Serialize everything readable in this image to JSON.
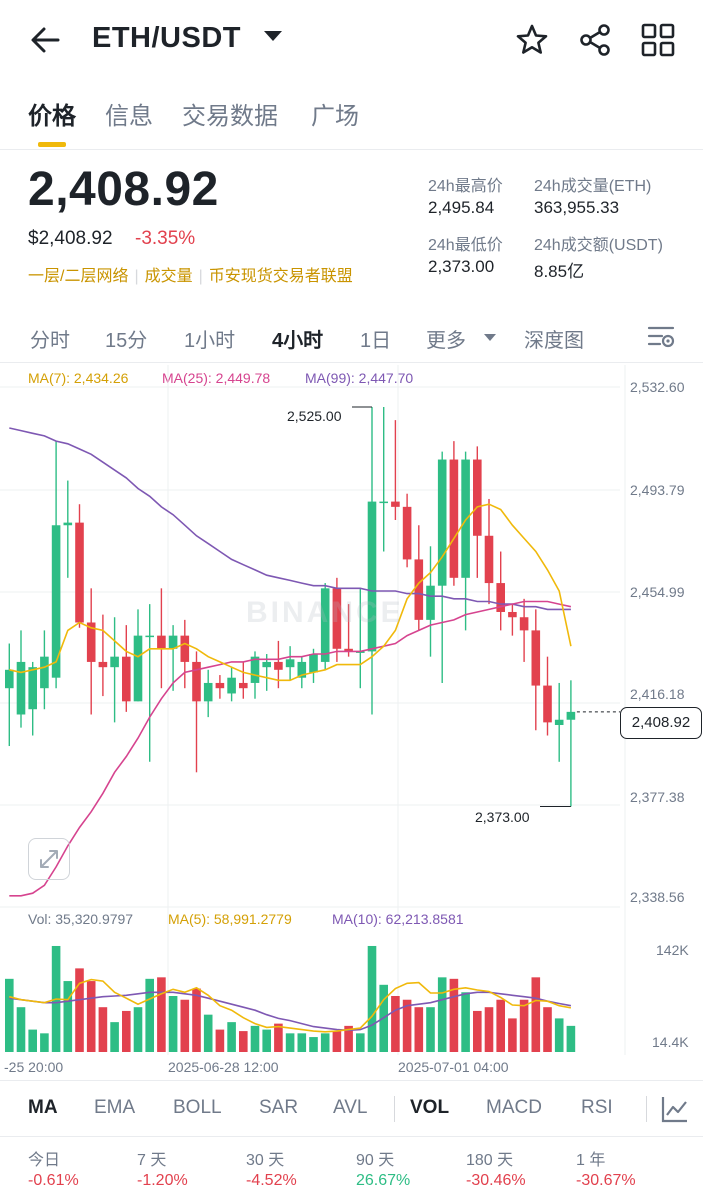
{
  "header": {
    "pair": "ETH/USDT",
    "icons": [
      "back-arrow-icon",
      "chevron-down-icon",
      "star-icon",
      "share-icon",
      "grid-icon"
    ]
  },
  "tabs": [
    {
      "label": "价格",
      "active": true
    },
    {
      "label": "信息",
      "active": false
    },
    {
      "label": "交易数据",
      "active": false
    },
    {
      "label": "广场",
      "active": false
    }
  ],
  "price": {
    "last": "2,408.92",
    "usd": "$2,408.92",
    "change": "-3.35%",
    "tags": [
      "一层/二层网络",
      "成交量",
      "币安现货交易者联盟"
    ]
  },
  "stats": {
    "high_label": "24h最高价",
    "high": "2,495.84",
    "low_label": "24h最低价",
    "low": "2,373.00",
    "vol_eth_label": "24h成交量(ETH)",
    "vol_eth": "363,955.33",
    "vol_usdt_label": "24h成交额(USDT)",
    "vol_usdt": "8.85亿"
  },
  "timeframes": [
    {
      "label": "分时",
      "active": false
    },
    {
      "label": "15分",
      "active": false
    },
    {
      "label": "1小时",
      "active": false
    },
    {
      "label": "4小时",
      "active": true
    },
    {
      "label": "1日",
      "active": false
    },
    {
      "label": "更多",
      "active": false
    },
    {
      "label": "深度图",
      "active": false
    }
  ],
  "ma": {
    "ma7": "MA(7): 2,434.26",
    "ma25": "MA(25): 2,449.78",
    "ma99": "MA(99): 2,447.70"
  },
  "vol_info": {
    "vol": "Vol: 35,320.9797",
    "ma5": "MA(5): 58,991.2779",
    "ma10": "MA(10): 62,213.8581"
  },
  "chart_data": {
    "type": "candlestick",
    "watermark": "BINANCE",
    "price_axis": [
      "2,532.60",
      "2,493.79",
      "2,454.99",
      "2,416.18",
      "2,377.38",
      "2,338.56"
    ],
    "volume_axis": [
      "142K",
      "14.4K"
    ],
    "x_labels": [
      "-25 20:00",
      "2025-06-28 12:00",
      "2025-07-01 04:00"
    ],
    "current_price": "2,408.92",
    "high_marker": "2,525.00",
    "low_marker": "2,373.00",
    "ylim": [
      2338.56,
      2532.6
    ],
    "volume_ylim": [
      0,
      150000
    ],
    "candles": [
      {
        "o": 2418,
        "h": 2435,
        "l": 2396,
        "c": 2425,
        "v": 98000
      },
      {
        "o": 2408,
        "h": 2440,
        "l": 2403,
        "c": 2428,
        "v": 60000
      },
      {
        "o": 2410,
        "h": 2428,
        "l": 2400,
        "c": 2426,
        "v": 30000
      },
      {
        "o": 2418,
        "h": 2440,
        "l": 2410,
        "c": 2430,
        "v": 25000
      },
      {
        "o": 2422,
        "h": 2512,
        "l": 2418,
        "c": 2480,
        "v": 142000
      },
      {
        "o": 2480,
        "h": 2497,
        "l": 2460,
        "c": 2481,
        "v": 95000
      },
      {
        "o": 2481,
        "h": 2488,
        "l": 2441,
        "c": 2443,
        "v": 112000
      },
      {
        "o": 2443,
        "h": 2456,
        "l": 2408,
        "c": 2428,
        "v": 95000
      },
      {
        "o": 2428,
        "h": 2446,
        "l": 2415,
        "c": 2426,
        "v": 60000
      },
      {
        "o": 2426,
        "h": 2445,
        "l": 2405,
        "c": 2430,
        "v": 40000
      },
      {
        "o": 2430,
        "h": 2442,
        "l": 2409,
        "c": 2413,
        "v": 55000
      },
      {
        "o": 2413,
        "h": 2448,
        "l": 2413,
        "c": 2438,
        "v": 60000
      },
      {
        "o": 2438,
        "h": 2450,
        "l": 2390,
        "c": 2438,
        "v": 98000
      },
      {
        "o": 2438,
        "h": 2456,
        "l": 2418,
        "c": 2433,
        "v": 100000
      },
      {
        "o": 2433,
        "h": 2442,
        "l": 2417,
        "c": 2438,
        "v": 75000
      },
      {
        "o": 2438,
        "h": 2444,
        "l": 2418,
        "c": 2428,
        "v": 70000
      },
      {
        "o": 2428,
        "h": 2432,
        "l": 2386,
        "c": 2413,
        "v": 85000
      },
      {
        "o": 2413,
        "h": 2425,
        "l": 2407,
        "c": 2420,
        "v": 50000
      },
      {
        "o": 2420,
        "h": 2423,
        "l": 2414,
        "c": 2418,
        "v": 30000
      },
      {
        "o": 2416,
        "h": 2426,
        "l": 2413,
        "c": 2422,
        "v": 40000
      },
      {
        "o": 2420,
        "h": 2428,
        "l": 2414,
        "c": 2418,
        "v": 28000
      },
      {
        "o": 2420,
        "h": 2432,
        "l": 2414,
        "c": 2430,
        "v": 35000
      },
      {
        "o": 2426,
        "h": 2431,
        "l": 2417,
        "c": 2428,
        "v": 30000
      },
      {
        "o": 2428,
        "h": 2436,
        "l": 2418,
        "c": 2425,
        "v": 38000
      },
      {
        "o": 2426,
        "h": 2434,
        "l": 2421,
        "c": 2429,
        "v": 25000
      },
      {
        "o": 2422,
        "h": 2430,
        "l": 2418,
        "c": 2428,
        "v": 25000
      },
      {
        "o": 2424,
        "h": 2433,
        "l": 2420,
        "c": 2431,
        "v": 20000
      },
      {
        "o": 2428,
        "h": 2458,
        "l": 2425,
        "c": 2456,
        "v": 25000
      },
      {
        "o": 2456,
        "h": 2460,
        "l": 2428,
        "c": 2433,
        "v": 28000
      },
      {
        "o": 2433,
        "h": 2450,
        "l": 2430,
        "c": 2432,
        "v": 35000
      },
      {
        "o": 2432,
        "h": 2456,
        "l": 2418,
        "c": 2432,
        "v": 25000
      },
      {
        "o": 2432,
        "h": 2525,
        "l": 2408,
        "c": 2489,
        "v": 142000
      },
      {
        "o": 2489,
        "h": 2525,
        "l": 2470,
        "c": 2489,
        "v": 90000
      },
      {
        "o": 2489,
        "h": 2520,
        "l": 2482,
        "c": 2487,
        "v": 75000
      },
      {
        "o": 2487,
        "h": 2492,
        "l": 2464,
        "c": 2467,
        "v": 70000
      },
      {
        "o": 2467,
        "h": 2480,
        "l": 2440,
        "c": 2444,
        "v": 60000
      },
      {
        "o": 2444,
        "h": 2472,
        "l": 2430,
        "c": 2457,
        "v": 60000
      },
      {
        "o": 2457,
        "h": 2508,
        "l": 2420,
        "c": 2505,
        "v": 100000
      },
      {
        "o": 2505,
        "h": 2512,
        "l": 2457,
        "c": 2460,
        "v": 98000
      },
      {
        "o": 2460,
        "h": 2508,
        "l": 2440,
        "c": 2505,
        "v": 80000
      },
      {
        "o": 2505,
        "h": 2510,
        "l": 2460,
        "c": 2476,
        "v": 55000
      },
      {
        "o": 2476,
        "h": 2490,
        "l": 2450,
        "c": 2458,
        "v": 60000
      },
      {
        "o": 2458,
        "h": 2470,
        "l": 2440,
        "c": 2447,
        "v": 70000
      },
      {
        "o": 2447,
        "h": 2450,
        "l": 2438,
        "c": 2445,
        "v": 45000
      },
      {
        "o": 2445,
        "h": 2452,
        "l": 2428,
        "c": 2440,
        "v": 70000
      },
      {
        "o": 2440,
        "h": 2448,
        "l": 2402,
        "c": 2419,
        "v": 100000
      },
      {
        "o": 2419,
        "h": 2430,
        "l": 2400,
        "c": 2405,
        "v": 60000
      },
      {
        "o": 2404,
        "h": 2420,
        "l": 2390,
        "c": 2406,
        "v": 45000
      },
      {
        "o": 2406,
        "h": 2421,
        "l": 2373,
        "c": 2409,
        "v": 35000
      }
    ],
    "ma7": [
      2425,
      2424,
      2425,
      2426,
      2428,
      2440,
      2443,
      2441,
      2440,
      2436,
      2432,
      2430,
      2433,
      2433,
      2433,
      2435,
      2433,
      2430,
      2428,
      2426,
      2424,
      2423,
      2422,
      2421,
      2421,
      2423,
      2424,
      2425,
      2427,
      2427,
      2427,
      2430,
      2434,
      2440,
      2452,
      2458,
      2462,
      2468,
      2475,
      2482,
      2487,
      2488,
      2486,
      2480,
      2475,
      2470,
      2463,
      2455,
      2434
    ],
    "ma25": [
      2339,
      2339,
      2340,
      2343,
      2350,
      2358,
      2365,
      2371,
      2378,
      2386,
      2392,
      2399,
      2407,
      2414,
      2420,
      2424,
      2425,
      2426,
      2427,
      2428,
      2428,
      2429,
      2429,
      2429,
      2430,
      2430,
      2431,
      2431,
      2432,
      2432,
      2432,
      2433,
      2434,
      2435,
      2438,
      2440,
      2442,
      2443,
      2444,
      2446,
      2447,
      2448,
      2449,
      2450,
      2451,
      2451,
      2451,
      2450,
      2449
    ],
    "ma99": [
      2517,
      2516,
      2515,
      2514,
      2512,
      2511,
      2509,
      2507,
      2504,
      2501,
      2498,
      2494,
      2491,
      2487,
      2484,
      2480,
      2476,
      2473,
      2470,
      2467,
      2465,
      2463,
      2461,
      2460,
      2459,
      2458,
      2457,
      2457,
      2456,
      2456,
      2456,
      2455,
      2455,
      2455,
      2454,
      2454,
      2453,
      2453,
      2452,
      2452,
      2451,
      2451,
      2450,
      2450,
      2449,
      2449,
      2448,
      2448,
      2448
    ],
    "vol_ma5": [
      74000,
      70000,
      68000,
      66000,
      71000,
      70000,
      92000,
      97000,
      95000,
      80000,
      72000,
      64000,
      71000,
      78000,
      84000,
      80000,
      86000,
      76000,
      62000,
      56000,
      46000,
      38000,
      33000,
      34000,
      32000,
      30000,
      28000,
      27000,
      28000,
      30000,
      32000,
      48000,
      70000,
      85000,
      92000,
      93000,
      79000,
      79000,
      84000,
      86000,
      83000,
      81000,
      73000,
      63000,
      62000,
      69000,
      68000,
      62000,
      59000
    ],
    "vol_ma10": [
      72000,
      70000,
      68000,
      66000,
      66000,
      68000,
      70000,
      72000,
      74000,
      75000,
      76000,
      78000,
      80000,
      80000,
      80000,
      78000,
      76000,
      72000,
      68000,
      64000,
      60000,
      56000,
      50000,
      45000,
      42000,
      38000,
      34000,
      32000,
      30000,
      29000,
      30000,
      36000,
      46000,
      56000,
      62000,
      64000,
      66000,
      70000,
      74000,
      78000,
      80000,
      80000,
      78000,
      76000,
      74000,
      72000,
      68000,
      65000,
      62000
    ]
  },
  "indicators": [
    {
      "label": "MA",
      "active": true
    },
    {
      "label": "EMA",
      "active": false
    },
    {
      "label": "BOLL",
      "active": false
    },
    {
      "label": "SAR",
      "active": false
    },
    {
      "label": "AVL",
      "active": false
    },
    {
      "label": "VOL",
      "active": true
    },
    {
      "label": "MACD",
      "active": false
    },
    {
      "label": "RSI",
      "active": false
    }
  ],
  "periods": [
    {
      "label": "今日",
      "value": "-0.61%",
      "sign": "neg"
    },
    {
      "label": "7 天",
      "value": "-1.20%",
      "sign": "neg"
    },
    {
      "label": "30 天",
      "value": "-4.52%",
      "sign": "neg"
    },
    {
      "label": "90 天",
      "value": "26.67%",
      "sign": "pos"
    },
    {
      "label": "180 天",
      "value": "-30.46%",
      "sign": "neg"
    },
    {
      "label": "1 年",
      "value": "-30.67%",
      "sign": "neg"
    }
  ],
  "colors": {
    "up": "#2ebd85",
    "down": "#e2414e",
    "ma7": "#f0b90b",
    "ma25": "#d6448f",
    "ma99": "#7e58b3",
    "accent": "#f0b90b"
  }
}
